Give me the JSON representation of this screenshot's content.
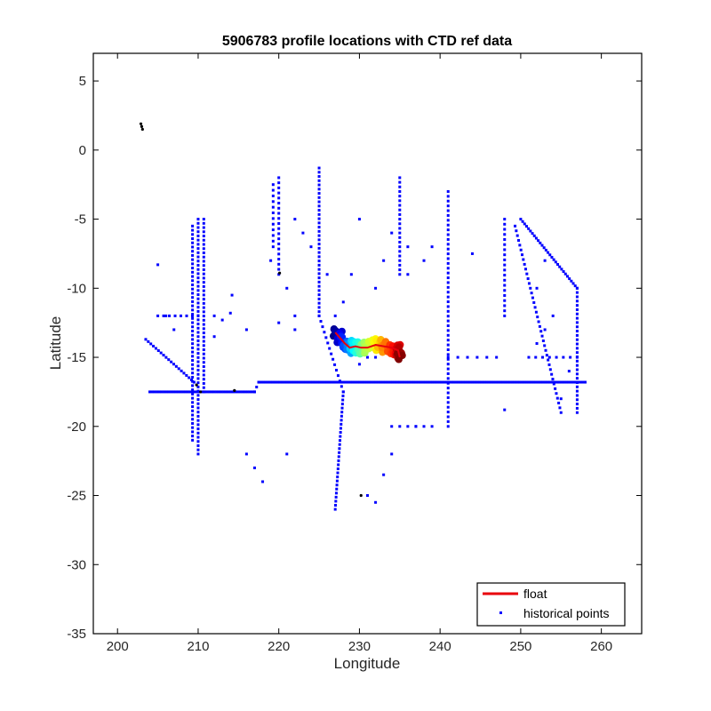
{
  "chart_data": {
    "type": "scatter",
    "title": "5906783 profile locations with CTD ref data",
    "xlabel": "Longitude",
    "ylabel": "Latitude",
    "xlim": [
      197,
      265
    ],
    "ylim": [
      -35,
      7
    ],
    "xticks": [
      200,
      210,
      220,
      230,
      240,
      250,
      260
    ],
    "yticks": [
      5,
      0,
      -5,
      -10,
      -15,
      -20,
      -25,
      -30,
      -35
    ],
    "grid": false,
    "legend_position": "bottom-right",
    "series": [
      {
        "name": "float",
        "kind": "line",
        "color": "#e8000b",
        "points": [
          [
            227.0,
            -13.2
          ],
          [
            227.6,
            -13.6
          ],
          [
            228.2,
            -14.0
          ],
          [
            228.8,
            -14.3
          ],
          [
            229.5,
            -14.2
          ],
          [
            230.2,
            -14.3
          ],
          [
            231.0,
            -14.3
          ],
          [
            232.0,
            -14.1
          ],
          [
            233.0,
            -14.2
          ],
          [
            234.0,
            -14.3
          ],
          [
            234.8,
            -14.5
          ],
          [
            235.0,
            -15.0
          ]
        ]
      },
      {
        "name": "historical points",
        "kind": "scatter",
        "color": "#0000ff",
        "segments": [
          {
            "from": [
              204.0,
              -17.5
            ],
            "to": [
              217.0,
              -17.5
            ],
            "n": 45
          },
          {
            "from": [
              217.0,
              -17.5
            ],
            "to": [
              217.5,
              -16.8
            ],
            "n": 3
          },
          {
            "from": [
              217.5,
              -16.8
            ],
            "to": [
              258.0,
              -16.8
            ],
            "n": 140
          },
          {
            "from": [
              210.0,
              -5.0
            ],
            "to": [
              210.0,
              -22.0
            ],
            "n": 57
          },
          {
            "from": [
              210.7,
              -5.0
            ],
            "to": [
              210.7,
              -17.5
            ],
            "n": 42
          },
          {
            "from": [
              209.3,
              -5.5
            ],
            "to": [
              209.3,
              -21.0
            ],
            "n": 52
          },
          {
            "from": [
              225.0,
              -1.3
            ],
            "to": [
              225.0,
              -12.0
            ],
            "n": 36
          },
          {
            "from": [
              225.0,
              -12.0
            ],
            "to": [
              228.0,
              -17.5
            ],
            "n": 15
          },
          {
            "from": [
              228.0,
              -17.5
            ],
            "to": [
              227.0,
              -26.0
            ],
            "n": 30
          },
          {
            "from": [
              203.5,
              -13.7
            ],
            "to": [
              209.5,
              -16.8
            ],
            "n": 20
          },
          {
            "from": [
              250.0,
              -5.0
            ],
            "to": [
              257.0,
              -10.0
            ],
            "n": 30
          },
          {
            "from": [
              257.0,
              -10.0
            ],
            "to": [
              257.0,
              -19.0
            ],
            "n": 30
          },
          {
            "from": [
              249.3,
              -5.5
            ],
            "to": [
              255.0,
              -19.0
            ],
            "n": 40
          },
          {
            "from": [
              220.0,
              -2.0
            ],
            "to": [
              220.0,
              -9.0
            ],
            "n": 20
          },
          {
            "from": [
              219.3,
              -2.5
            ],
            "to": [
              219.3,
              -7.0
            ],
            "n": 12
          },
          {
            "from": [
              235.0,
              -2.0
            ],
            "to": [
              235.0,
              -9.0
            ],
            "n": 22
          },
          {
            "from": [
              241.0,
              -3.0
            ],
            "to": [
              241.0,
              -20.0
            ],
            "n": 50
          },
          {
            "from": [
              248.0,
              -5.0
            ],
            "to": [
              248.0,
              -12.0
            ],
            "n": 20
          },
          {
            "from": [
              205.0,
              -12.0
            ],
            "to": [
              210.0,
              -12.0
            ],
            "n": 8
          },
          {
            "from": [
              234.0,
              -20.0
            ],
            "to": [
              239.0,
              -20.0
            ],
            "n": 6
          },
          {
            "from": [
              241.0,
              -15.0
            ],
            "to": [
              247.0,
              -15.0
            ],
            "n": 6
          },
          {
            "from": [
              251.0,
              -15.0
            ],
            "to": [
              257.0,
              -15.0
            ],
            "n": 8
          }
        ],
        "points": [
          [
            205,
            -8.3
          ],
          [
            212,
            -12
          ],
          [
            213,
            -12.3
          ],
          [
            214,
            -11.8
          ],
          [
            214.2,
            -10.5
          ],
          [
            216,
            -13
          ],
          [
            216,
            -22
          ],
          [
            217,
            -23
          ],
          [
            218,
            -24
          ],
          [
            221,
            -22
          ],
          [
            219,
            -8
          ],
          [
            221,
            -10
          ],
          [
            222,
            -12
          ],
          [
            222,
            -5
          ],
          [
            223,
            -6
          ],
          [
            224,
            -7
          ],
          [
            226,
            -9
          ],
          [
            229,
            -9
          ],
          [
            231,
            -15
          ],
          [
            230,
            -5
          ],
          [
            232,
            -10
          ],
          [
            233,
            -8
          ],
          [
            234,
            -6
          ],
          [
            236,
            -9
          ],
          [
            238,
            -8
          ],
          [
            239,
            -7
          ],
          [
            244,
            -7.5
          ],
          [
            227,
            -12
          ],
          [
            228,
            -11
          ],
          [
            230,
            -15.5
          ],
          [
            231,
            -25
          ],
          [
            232,
            -25.5
          ],
          [
            233,
            -23.5
          ],
          [
            234,
            -22
          ],
          [
            237,
            -20
          ],
          [
            252,
            -14
          ],
          [
            253,
            -13
          ],
          [
            254,
            -12
          ],
          [
            252,
            -10
          ],
          [
            253,
            -8
          ],
          [
            256,
            -16
          ],
          [
            248,
            -18.8
          ],
          [
            255,
            -18
          ],
          [
            206,
            -12
          ],
          [
            207,
            -13
          ],
          [
            236,
            -7
          ],
          [
            232,
            -15
          ],
          [
            212,
            -13.5
          ],
          [
            222,
            -13
          ],
          [
            220,
            -12.5
          ]
        ]
      },
      {
        "name": "",
        "kind": "scatter",
        "color": "#000000",
        "points": [
          [
            202.9,
            1.9
          ],
          [
            203.0,
            1.7
          ],
          [
            203.1,
            1.5
          ],
          [
            220.1,
            -8.9
          ],
          [
            230.2,
            -25.0
          ],
          [
            214.5,
            -17.4
          ],
          [
            210.3,
            -17.5
          ],
          [
            209.8,
            -17.0
          ]
        ]
      }
    ],
    "float_profiles_colormap": "jet",
    "float_profiles_x_range": [
      226.5,
      235.5
    ],
    "float_profiles_y_range": [
      -15.3,
      -12.9
    ],
    "legend": [
      {
        "label": "float",
        "marker": "line",
        "color": "#e8000b"
      },
      {
        "label": "historical points",
        "marker": "point",
        "color": "#0000ff"
      }
    ]
  }
}
